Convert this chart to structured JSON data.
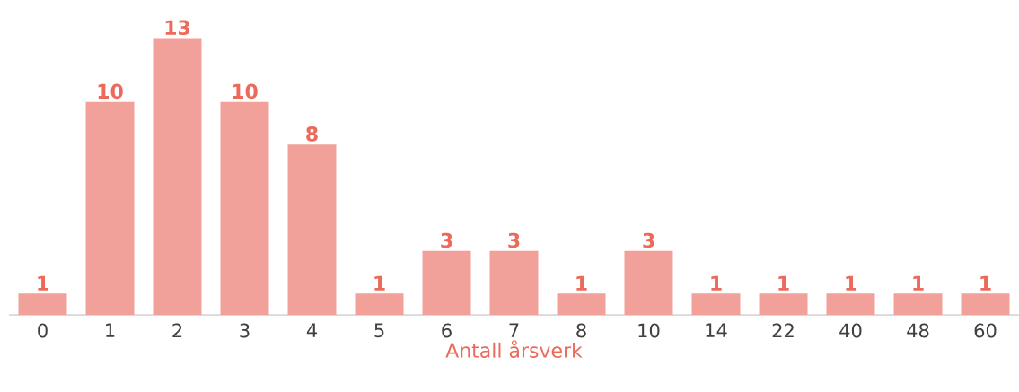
{
  "chart_data": {
    "type": "bar",
    "xlabel": "Antall årsverk",
    "categories": [
      "0",
      "1",
      "2",
      "3",
      "4",
      "5",
      "6",
      "7",
      "8",
      "10",
      "14",
      "22",
      "40",
      "48",
      "60"
    ],
    "values": [
      1,
      10,
      13,
      10,
      8,
      1,
      3,
      3,
      1,
      3,
      1,
      1,
      1,
      1,
      1
    ],
    "color": "#f1a09a",
    "data_labels": true
  }
}
